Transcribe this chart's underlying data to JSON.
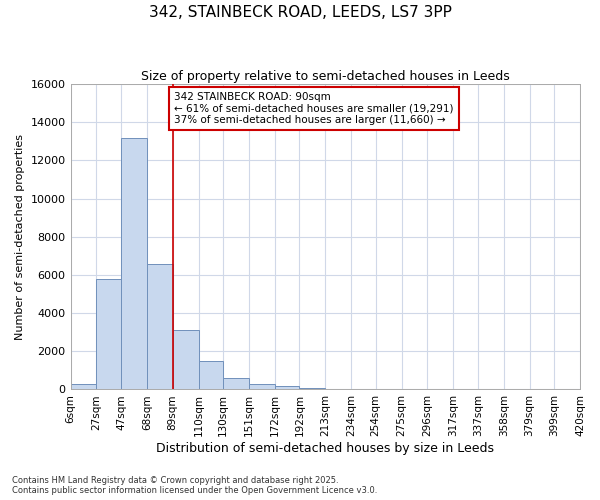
{
  "title_line1": "342, STAINBECK ROAD, LEEDS, LS7 3PP",
  "title_line2": "Size of property relative to semi-detached houses in Leeds",
  "xlabel": "Distribution of semi-detached houses by size in Leeds",
  "ylabel": "Number of semi-detached properties",
  "footer_line1": "Contains HM Land Registry data © Crown copyright and database right 2025.",
  "footer_line2": "Contains public sector information licensed under the Open Government Licence v3.0.",
  "bar_edges": [
    6,
    27,
    47,
    68,
    89,
    110,
    130,
    151,
    172,
    192,
    213,
    234,
    254,
    275,
    296,
    317,
    337,
    358,
    379,
    399,
    420
  ],
  "bar_heights": [
    300,
    5800,
    13200,
    6600,
    3100,
    1500,
    600,
    300,
    200,
    100,
    50,
    20,
    0,
    0,
    0,
    0,
    0,
    0,
    0,
    0
  ],
  "bar_color": "#c8d8ee",
  "bar_edgecolor": "#7090bb",
  "bar_linewidth": 0.7,
  "vline_x": 89,
  "vline_color": "#cc0000",
  "vline_linewidth": 1.2,
  "annotation_text": "342 STAINBECK ROAD: 90sqm\n← 61% of semi-detached houses are smaller (19,291)\n37% of semi-detached houses are larger (11,660) →",
  "annotation_box_edgecolor": "#cc0000",
  "annotation_box_facecolor": "#ffffff",
  "ylim": [
    0,
    16000
  ],
  "yticks": [
    0,
    2000,
    4000,
    6000,
    8000,
    10000,
    12000,
    14000,
    16000
  ],
  "tick_labels": [
    "6sqm",
    "27sqm",
    "47sqm",
    "68sqm",
    "89sqm",
    "110sqm",
    "130sqm",
    "151sqm",
    "172sqm",
    "192sqm",
    "213sqm",
    "234sqm",
    "254sqm",
    "275sqm",
    "296sqm",
    "317sqm",
    "337sqm",
    "358sqm",
    "379sqm",
    "399sqm",
    "420sqm"
  ],
  "grid_color": "#d0d8e8",
  "background_color": "#ffffff",
  "plot_background": "#ffffff"
}
